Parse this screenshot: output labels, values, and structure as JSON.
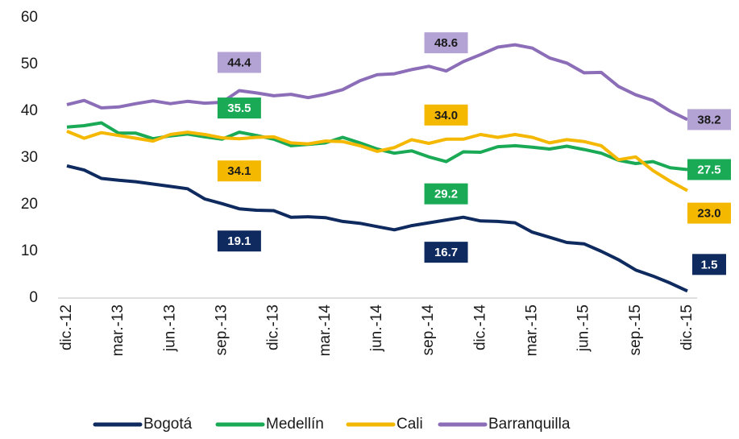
{
  "chart_data": {
    "type": "line",
    "categories": [
      "dic.-12",
      null,
      null,
      "mar.-13",
      null,
      null,
      "jun.-13",
      null,
      null,
      "sep.-13",
      null,
      null,
      "dic.-13",
      null,
      null,
      "mar.-14",
      null,
      null,
      "jun.-14",
      null,
      null,
      "sep.-14",
      null,
      null,
      "dic.-14",
      null,
      null,
      "mar.-15",
      null,
      null,
      "jun.-15",
      null,
      null,
      "sep.-15",
      null,
      null,
      "dic.-15"
    ],
    "ylim": [
      0,
      60
    ],
    "yticks": [
      0,
      10,
      20,
      30,
      40,
      50,
      60
    ],
    "grid": false,
    "legend": "bottom",
    "series": [
      {
        "name": "Bogotá",
        "color": "#0e2a5e",
        "label_color": "#ffffff",
        "values": [
          28.3,
          27.4,
          25.6,
          25.2,
          24.9,
          24.4,
          23.9,
          23.4,
          21.2,
          20.2,
          19.1,
          18.8,
          18.7,
          17.3,
          17.4,
          17.2,
          16.4,
          16.0,
          15.3,
          14.6,
          15.5,
          16.1,
          16.7,
          17.3,
          16.5,
          16.4,
          16.1,
          14.1,
          13.0,
          11.9,
          11.6,
          10.0,
          8.2,
          6.0,
          4.7,
          3.2,
          1.5
        ],
        "value_labels": [
          null,
          null,
          null,
          null,
          null,
          null,
          null,
          null,
          null,
          null,
          "19.1",
          null,
          null,
          null,
          null,
          null,
          null,
          null,
          null,
          null,
          null,
          null,
          "16.7",
          null,
          null,
          null,
          null,
          null,
          null,
          null,
          null,
          null,
          null,
          null,
          null,
          null,
          "1.5"
        ]
      },
      {
        "name": "Medellín",
        "color": "#1aa955",
        "label_color": "#ffffff",
        "values": [
          36.6,
          36.9,
          37.5,
          35.3,
          35.3,
          34.1,
          34.7,
          35.1,
          34.5,
          34.0,
          35.5,
          34.8,
          34.0,
          32.6,
          32.9,
          33.2,
          34.4,
          33.2,
          31.9,
          31.0,
          31.5,
          30.2,
          29.2,
          31.3,
          31.2,
          32.4,
          32.6,
          32.3,
          31.9,
          32.5,
          31.8,
          31.0,
          29.5,
          28.8,
          29.2,
          27.9,
          27.5
        ],
        "value_labels": [
          null,
          null,
          null,
          null,
          null,
          null,
          null,
          null,
          null,
          null,
          "35.5",
          null,
          null,
          null,
          null,
          null,
          null,
          null,
          null,
          null,
          null,
          null,
          "29.2",
          null,
          null,
          null,
          null,
          null,
          null,
          null,
          null,
          null,
          null,
          null,
          null,
          null,
          "27.5"
        ]
      },
      {
        "name": "Cali",
        "color": "#f5b800",
        "label_color": "#1a1a1a",
        "values": [
          35.7,
          34.2,
          35.4,
          34.8,
          34.2,
          33.6,
          35.0,
          35.5,
          35.0,
          34.3,
          34.1,
          34.4,
          34.5,
          33.2,
          33.0,
          33.6,
          33.5,
          32.6,
          31.4,
          32.2,
          33.9,
          33.1,
          34.0,
          34.0,
          35.0,
          34.4,
          35.0,
          34.4,
          33.2,
          33.9,
          33.5,
          32.6,
          29.6,
          30.2,
          27.3,
          25.0,
          23.0
        ],
        "value_labels": [
          null,
          null,
          null,
          null,
          null,
          null,
          null,
          null,
          null,
          null,
          "34.1",
          null,
          null,
          null,
          null,
          null,
          null,
          null,
          null,
          null,
          null,
          null,
          "34.0",
          null,
          null,
          null,
          null,
          null,
          null,
          null,
          null,
          null,
          null,
          null,
          null,
          null,
          "23.0"
        ]
      },
      {
        "name": "Barranquilla",
        "color": "#8c6db8",
        "label_color": "#1a1a1a",
        "values": [
          41.4,
          42.3,
          40.7,
          40.9,
          41.6,
          42.2,
          41.6,
          42.1,
          41.7,
          41.9,
          44.4,
          43.9,
          43.3,
          43.6,
          42.9,
          43.6,
          44.6,
          46.5,
          47.8,
          48.0,
          48.9,
          49.6,
          48.6,
          50.6,
          52.1,
          53.7,
          54.2,
          53.5,
          51.4,
          50.3,
          48.2,
          48.3,
          45.3,
          43.5,
          42.3,
          40.0,
          38.2
        ],
        "value_labels": [
          null,
          null,
          null,
          null,
          null,
          null,
          null,
          null,
          null,
          null,
          "44.4",
          null,
          null,
          null,
          null,
          null,
          null,
          null,
          null,
          null,
          null,
          null,
          "48.6",
          null,
          null,
          null,
          null,
          null,
          null,
          null,
          null,
          null,
          null,
          null,
          null,
          null,
          "38.2"
        ]
      }
    ]
  }
}
